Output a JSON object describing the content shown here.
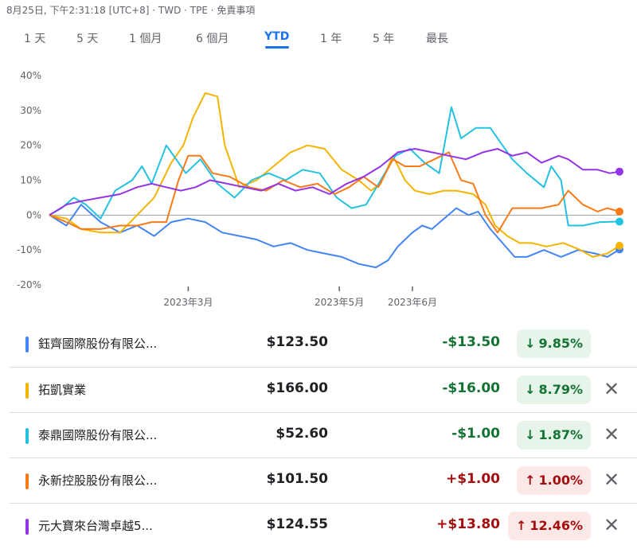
{
  "header": {
    "info": "8月25日, 下午2:31:18 [UTC+8] · TWD · TPE · 免責事項"
  },
  "range_tabs": [
    {
      "label": "1 天",
      "active": false
    },
    {
      "label": "5 天",
      "active": false
    },
    {
      "label": "1 個月",
      "active": false
    },
    {
      "label": "6 個月",
      "active": false
    },
    {
      "label": "YTD",
      "active": true
    },
    {
      "label": "1 年",
      "active": false
    },
    {
      "label": "5 年",
      "active": false
    },
    {
      "label": "最長",
      "active": false
    }
  ],
  "chart_data": {
    "type": "line",
    "y_ticks": [
      "40%",
      "30%",
      "20%",
      "10%",
      "0%",
      "-10%",
      "-20%"
    ],
    "ylim": [
      -20,
      40
    ],
    "x_ticks": [
      "2023年3月",
      "2023年5月",
      "2023年6月"
    ],
    "x_start": "2023-01-03",
    "x_end": "2023-08-25",
    "x_tick_dates": [
      "2023-03-01",
      "2023-05-02",
      "2023-06-01"
    ],
    "zero_line": true,
    "series": [
      {
        "name": "鈺齊國際股份有限公...",
        "color": "#4285f4",
        "points": [
          [
            "2023-01-03",
            0
          ],
          [
            "2023-01-10",
            -3
          ],
          [
            "2023-01-16",
            3
          ],
          [
            "2023-01-24",
            -2
          ],
          [
            "2023-02-01",
            -5
          ],
          [
            "2023-02-08",
            -3
          ],
          [
            "2023-02-15",
            -6
          ],
          [
            "2023-02-22",
            -2
          ],
          [
            "2023-03-01",
            -1
          ],
          [
            "2023-03-08",
            -2
          ],
          [
            "2023-03-15",
            -5
          ],
          [
            "2023-03-22",
            -6
          ],
          [
            "2023-03-29",
            -7
          ],
          [
            "2023-04-05",
            -9
          ],
          [
            "2023-04-12",
            -8
          ],
          [
            "2023-04-19",
            -10
          ],
          [
            "2023-04-26",
            -11
          ],
          [
            "2023-05-03",
            -12
          ],
          [
            "2023-05-10",
            -14
          ],
          [
            "2023-05-17",
            -15
          ],
          [
            "2023-05-22",
            -13
          ],
          [
            "2023-05-26",
            -9
          ],
          [
            "2023-06-01",
            -5
          ],
          [
            "2023-06-05",
            -3
          ],
          [
            "2023-06-09",
            -4
          ],
          [
            "2023-06-14",
            -1
          ],
          [
            "2023-06-19",
            2
          ],
          [
            "2023-06-24",
            0
          ],
          [
            "2023-06-28",
            1
          ],
          [
            "2023-07-03",
            -4
          ],
          [
            "2023-07-08",
            -8
          ],
          [
            "2023-07-13",
            -12
          ],
          [
            "2023-07-18",
            -12
          ],
          [
            "2023-07-25",
            -10
          ],
          [
            "2023-08-01",
            -12
          ],
          [
            "2023-08-08",
            -10
          ],
          [
            "2023-08-15",
            -11
          ],
          [
            "2023-08-20",
            -12
          ],
          [
            "2023-08-25",
            -9.85
          ]
        ]
      },
      {
        "name": "拓凱實業",
        "color": "#f4b400",
        "points": [
          [
            "2023-01-03",
            0
          ],
          [
            "2023-01-10",
            -1
          ],
          [
            "2023-01-16",
            -4
          ],
          [
            "2023-01-24",
            -5
          ],
          [
            "2023-02-01",
            -5
          ],
          [
            "2023-02-08",
            0
          ],
          [
            "2023-02-15",
            5
          ],
          [
            "2023-02-22",
            15
          ],
          [
            "2023-02-27",
            20
          ],
          [
            "2023-03-03",
            28
          ],
          [
            "2023-03-08",
            35
          ],
          [
            "2023-03-13",
            34
          ],
          [
            "2023-03-16",
            20
          ],
          [
            "2023-03-22",
            8
          ],
          [
            "2023-03-29",
            10
          ],
          [
            "2023-04-05",
            14
          ],
          [
            "2023-04-12",
            18
          ],
          [
            "2023-04-19",
            20
          ],
          [
            "2023-04-26",
            19
          ],
          [
            "2023-05-03",
            13
          ],
          [
            "2023-05-10",
            10
          ],
          [
            "2023-05-15",
            7
          ],
          [
            "2023-05-19",
            9
          ],
          [
            "2023-05-24",
            17
          ],
          [
            "2023-05-29",
            10
          ],
          [
            "2023-06-02",
            7
          ],
          [
            "2023-06-08",
            6
          ],
          [
            "2023-06-14",
            7
          ],
          [
            "2023-06-19",
            7
          ],
          [
            "2023-06-26",
            6
          ],
          [
            "2023-07-01",
            3
          ],
          [
            "2023-07-05",
            -3
          ],
          [
            "2023-07-10",
            -6
          ],
          [
            "2023-07-15",
            -8
          ],
          [
            "2023-07-20",
            -8
          ],
          [
            "2023-07-26",
            -9
          ],
          [
            "2023-08-02",
            -8
          ],
          [
            "2023-08-09",
            -10
          ],
          [
            "2023-08-14",
            -12
          ],
          [
            "2023-08-20",
            -11
          ],
          [
            "2023-08-25",
            -8.79
          ]
        ]
      },
      {
        "name": "泰鼎國際股份有限公...",
        "color": "#24c1e0",
        "points": [
          [
            "2023-01-03",
            0
          ],
          [
            "2023-01-08",
            2
          ],
          [
            "2023-01-13",
            5
          ],
          [
            "2023-01-18",
            3
          ],
          [
            "2023-01-24",
            -1
          ],
          [
            "2023-01-30",
            7
          ],
          [
            "2023-02-06",
            10
          ],
          [
            "2023-02-10",
            14
          ],
          [
            "2023-02-14",
            9
          ],
          [
            "2023-02-20",
            20
          ],
          [
            "2023-02-23",
            17
          ],
          [
            "2023-02-28",
            12
          ],
          [
            "2023-03-06",
            16
          ],
          [
            "2023-03-13",
            9
          ],
          [
            "2023-03-20",
            5
          ],
          [
            "2023-03-27",
            10
          ],
          [
            "2023-04-03",
            12
          ],
          [
            "2023-04-10",
            10
          ],
          [
            "2023-04-17",
            13
          ],
          [
            "2023-04-24",
            12
          ],
          [
            "2023-05-01",
            5
          ],
          [
            "2023-05-07",
            2
          ],
          [
            "2023-05-13",
            3
          ],
          [
            "2023-05-19",
            10
          ],
          [
            "2023-05-25",
            17
          ],
          [
            "2023-05-31",
            19
          ],
          [
            "2023-06-06",
            15
          ],
          [
            "2023-06-12",
            12
          ],
          [
            "2023-06-17",
            31
          ],
          [
            "2023-06-21",
            22
          ],
          [
            "2023-06-27",
            25
          ],
          [
            "2023-07-03",
            25
          ],
          [
            "2023-07-08",
            20
          ],
          [
            "2023-07-12",
            16
          ],
          [
            "2023-07-18",
            12
          ],
          [
            "2023-07-25",
            8
          ],
          [
            "2023-07-28",
            14
          ],
          [
            "2023-08-01",
            10
          ],
          [
            "2023-08-04",
            -3
          ],
          [
            "2023-08-10",
            -3
          ],
          [
            "2023-08-17",
            -2
          ],
          [
            "2023-08-25",
            -1.87
          ]
        ]
      },
      {
        "name": "永新控股股份有限公...",
        "color": "#fa7b17",
        "points": [
          [
            "2023-01-03",
            0
          ],
          [
            "2023-01-10",
            -2
          ],
          [
            "2023-01-16",
            -4
          ],
          [
            "2023-01-24",
            -4
          ],
          [
            "2023-02-01",
            -3
          ],
          [
            "2023-02-08",
            -3
          ],
          [
            "2023-02-14",
            -2
          ],
          [
            "2023-02-20",
            -2
          ],
          [
            "2023-02-25",
            10
          ],
          [
            "2023-03-01",
            17
          ],
          [
            "2023-03-06",
            17
          ],
          [
            "2023-03-11",
            12
          ],
          [
            "2023-03-18",
            11
          ],
          [
            "2023-03-26",
            8
          ],
          [
            "2023-04-02",
            7
          ],
          [
            "2023-04-09",
            10
          ],
          [
            "2023-04-16",
            8
          ],
          [
            "2023-04-23",
            9
          ],
          [
            "2023-04-30",
            6
          ],
          [
            "2023-05-06",
            8
          ],
          [
            "2023-05-12",
            11
          ],
          [
            "2023-05-18",
            8
          ],
          [
            "2023-05-24",
            16
          ],
          [
            "2023-05-29",
            14
          ],
          [
            "2023-06-04",
            14
          ],
          [
            "2023-06-10",
            16
          ],
          [
            "2023-06-16",
            18
          ],
          [
            "2023-06-21",
            10
          ],
          [
            "2023-06-26",
            9
          ],
          [
            "2023-07-01",
            0
          ],
          [
            "2023-07-06",
            -5
          ],
          [
            "2023-07-12",
            2
          ],
          [
            "2023-07-18",
            2
          ],
          [
            "2023-07-24",
            2
          ],
          [
            "2023-07-31",
            3
          ],
          [
            "2023-08-04",
            7
          ],
          [
            "2023-08-10",
            3
          ],
          [
            "2023-08-16",
            1
          ],
          [
            "2023-08-20",
            2
          ],
          [
            "2023-08-25",
            1.0
          ]
        ]
      },
      {
        "name": "元大寶來台灣卓越5...",
        "color": "#9334e6",
        "points": [
          [
            "2023-01-03",
            0
          ],
          [
            "2023-01-10",
            3
          ],
          [
            "2023-01-16",
            4
          ],
          [
            "2023-01-24",
            5
          ],
          [
            "2023-02-01",
            6
          ],
          [
            "2023-02-08",
            8
          ],
          [
            "2023-02-14",
            9
          ],
          [
            "2023-02-20",
            8
          ],
          [
            "2023-02-26",
            7
          ],
          [
            "2023-03-04",
            8
          ],
          [
            "2023-03-10",
            10
          ],
          [
            "2023-03-17",
            9
          ],
          [
            "2023-03-24",
            8
          ],
          [
            "2023-03-31",
            7
          ],
          [
            "2023-04-07",
            9
          ],
          [
            "2023-04-14",
            7
          ],
          [
            "2023-04-21",
            8
          ],
          [
            "2023-04-28",
            6
          ],
          [
            "2023-05-05",
            9
          ],
          [
            "2023-05-12",
            11
          ],
          [
            "2023-05-19",
            14
          ],
          [
            "2023-05-26",
            18
          ],
          [
            "2023-06-02",
            19
          ],
          [
            "2023-06-09",
            18
          ],
          [
            "2023-06-16",
            17
          ],
          [
            "2023-06-23",
            16
          ],
          [
            "2023-06-30",
            18
          ],
          [
            "2023-07-06",
            19
          ],
          [
            "2023-07-12",
            17
          ],
          [
            "2023-07-18",
            18
          ],
          [
            "2023-07-24",
            15
          ],
          [
            "2023-07-31",
            17
          ],
          [
            "2023-08-04",
            16
          ],
          [
            "2023-08-10",
            13
          ],
          [
            "2023-08-16",
            13
          ],
          [
            "2023-08-21",
            12
          ],
          [
            "2023-08-25",
            12.46
          ]
        ]
      }
    ]
  },
  "stocks": [
    {
      "name": "鈺齊國際股份有限公...",
      "color": "#4285f4",
      "price": "$123.50",
      "change": "-$13.50",
      "pct": "9.85%",
      "direction": "down",
      "removable": false
    },
    {
      "name": "拓凱實業",
      "color": "#f4b400",
      "price": "$166.00",
      "change": "-$16.00",
      "pct": "8.79%",
      "direction": "down",
      "removable": true
    },
    {
      "name": "泰鼎國際股份有限公...",
      "color": "#24c1e0",
      "price": "$52.60",
      "change": "-$1.00",
      "pct": "1.87%",
      "direction": "down",
      "removable": true
    },
    {
      "name": "永新控股股份有限公...",
      "color": "#fa7b17",
      "price": "$101.50",
      "change": "+$1.00",
      "pct": "1.00%",
      "direction": "up",
      "removable": true
    },
    {
      "name": "元大寶來台灣卓越5...",
      "color": "#9334e6",
      "price": "$124.55",
      "change": "+$13.80",
      "pct": "12.46%",
      "direction": "up",
      "removable": true
    }
  ],
  "icons": {
    "down_arrow": "arrow-down-icon",
    "up_arrow": "arrow-up-icon",
    "close": "close-icon"
  }
}
